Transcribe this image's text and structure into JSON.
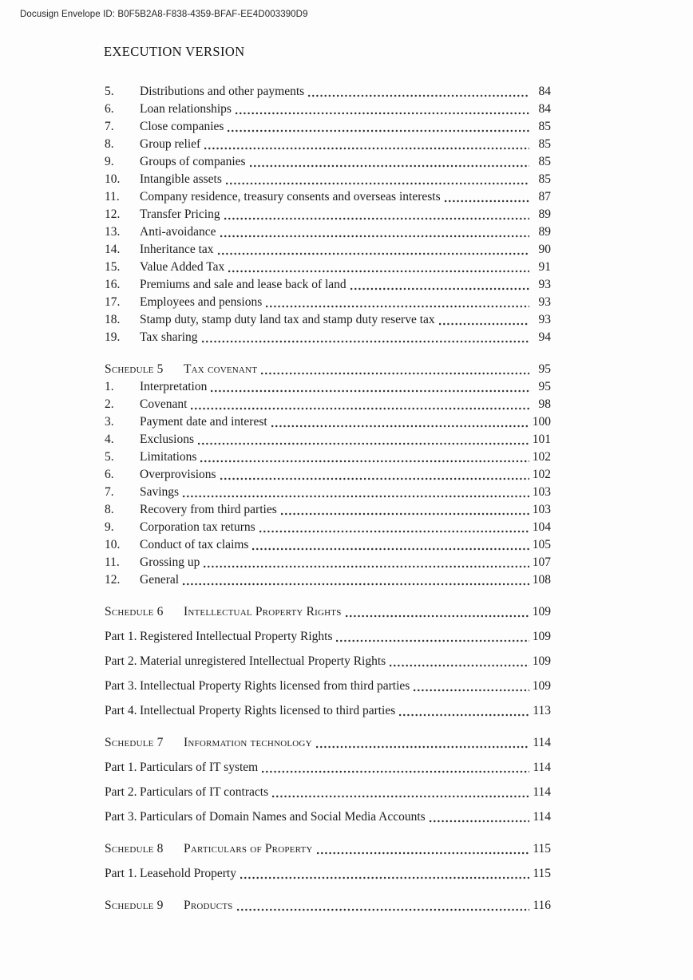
{
  "page": {
    "docusign_line": "Docusign Envelope ID: B0F5B2A8-F838-4359-BFAF-EE4D003390D9",
    "heading": "EXECUTION VERSION"
  },
  "toc": {
    "blocks": [
      {
        "type": "items",
        "rows": [
          {
            "num": "5.",
            "title": "Distributions and other payments",
            "page": "84"
          },
          {
            "num": "6.",
            "title": "Loan relationships",
            "page": "84"
          },
          {
            "num": "7.",
            "title": "Close companies",
            "page": "85"
          },
          {
            "num": "8.",
            "title": "Group relief",
            "page": "85"
          },
          {
            "num": "9.",
            "title": "Groups of companies",
            "page": "85"
          },
          {
            "num": "10.",
            "title": "Intangible assets",
            "page": "85"
          },
          {
            "num": "11.",
            "title": "Company residence, treasury consents and overseas interests",
            "page": "87"
          },
          {
            "num": "12.",
            "title": "Transfer Pricing",
            "page": "89"
          },
          {
            "num": "13.",
            "title": "Anti-avoidance",
            "page": "89"
          },
          {
            "num": "14.",
            "title": "Inheritance tax",
            "page": "90"
          },
          {
            "num": "15.",
            "title": "Value Added Tax",
            "page": "91"
          },
          {
            "num": "16.",
            "title": "Premiums and sale and lease back of land",
            "page": "93"
          },
          {
            "num": "17.",
            "title": "Employees and pensions",
            "page": "93"
          },
          {
            "num": "18.",
            "title": "Stamp duty, stamp duty land tax and stamp duty reserve tax",
            "page": "93"
          },
          {
            "num": "19.",
            "title": "Tax sharing",
            "page": "94"
          }
        ]
      },
      {
        "type": "schedule",
        "label": "Schedule 5",
        "title": "Tax covenant",
        "page": "95"
      },
      {
        "type": "items",
        "rows": [
          {
            "num": "1.",
            "title": "Interpretation",
            "page": "95"
          },
          {
            "num": "2.",
            "title": "Covenant",
            "page": "98"
          },
          {
            "num": "3.",
            "title": "Payment date and interest",
            "page": "100"
          },
          {
            "num": "4.",
            "title": "Exclusions",
            "page": "101"
          },
          {
            "num": "5.",
            "title": "Limitations",
            "page": "102"
          },
          {
            "num": "6.",
            "title": "Overprovisions",
            "page": "102"
          },
          {
            "num": "7.",
            "title": "Savings",
            "page": "103"
          },
          {
            "num": "8.",
            "title": "Recovery from third parties",
            "page": "103"
          },
          {
            "num": "9.",
            "title": "Corporation tax returns",
            "page": "104"
          },
          {
            "num": "10.",
            "title": "Conduct of tax claims",
            "page": "105"
          },
          {
            "num": "11.",
            "title": "Grossing up",
            "page": "107"
          },
          {
            "num": "12.",
            "title": "General",
            "page": "108"
          }
        ]
      },
      {
        "type": "schedule",
        "label": "Schedule 6",
        "title": "Intellectual Property Rights",
        "page": "109"
      },
      {
        "type": "parts",
        "rows": [
          {
            "num": "Part 1.",
            "title": "Registered Intellectual Property Rights",
            "page": "109"
          },
          {
            "num": "Part 2.",
            "title": "Material unregistered Intellectual Property Rights",
            "page": "109"
          },
          {
            "num": "Part 3.",
            "title": "Intellectual Property Rights licensed from third parties",
            "page": "109"
          },
          {
            "num": "Part 4.",
            "title": "Intellectual Property Rights licensed to third parties",
            "page": "113"
          }
        ]
      },
      {
        "type": "schedule",
        "label": "Schedule 7",
        "title": "Information technology",
        "page": "114"
      },
      {
        "type": "parts",
        "rows": [
          {
            "num": "Part 1.",
            "title": "Particulars of IT system",
            "page": "114"
          },
          {
            "num": "Part 2.",
            "title": "Particulars of IT contracts",
            "page": "114"
          },
          {
            "num": "Part 3.",
            "title": "Particulars of Domain Names and Social Media Accounts",
            "page": "114"
          }
        ]
      },
      {
        "type": "schedule",
        "label": "Schedule 8",
        "title": "Particulars of Property",
        "page": "115"
      },
      {
        "type": "parts",
        "rows": [
          {
            "num": "Part 1.",
            "title": "Leasehold Property",
            "page": "115"
          }
        ]
      },
      {
        "type": "schedule",
        "label": "Schedule 9",
        "title": "Products",
        "page": "116"
      }
    ]
  }
}
